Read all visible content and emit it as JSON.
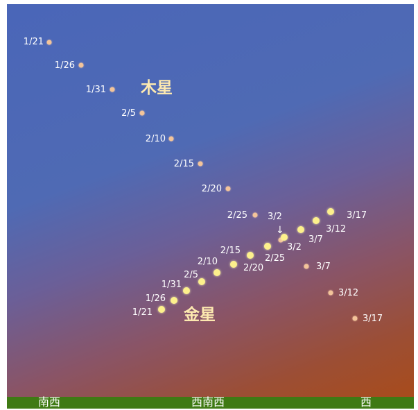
{
  "planets": {
    "jupiter": {
      "name": "木星",
      "positions": [
        {
          "date": "1/21"
        },
        {
          "date": "1/26"
        },
        {
          "date": "1/31"
        },
        {
          "date": "2/5"
        },
        {
          "date": "2/10"
        },
        {
          "date": "2/15"
        },
        {
          "date": "2/20"
        },
        {
          "date": "2/25"
        },
        {
          "date": "3/2"
        },
        {
          "date": "3/7"
        },
        {
          "date": "3/12"
        },
        {
          "date": "3/17"
        }
      ]
    },
    "venus": {
      "name": "金星",
      "positions": [
        {
          "date": "1/21"
        },
        {
          "date": "1/26"
        },
        {
          "date": "1/31"
        },
        {
          "date": "2/5"
        },
        {
          "date": "2/10"
        },
        {
          "date": "2/15"
        },
        {
          "date": "2/20"
        },
        {
          "date": "2/25"
        },
        {
          "date": "3/2"
        },
        {
          "date": "3/7"
        },
        {
          "date": "3/12"
        },
        {
          "date": "3/17"
        }
      ]
    }
  },
  "directions": [
    "南西",
    "西南西",
    "西"
  ],
  "conjunction_arrow": "↓",
  "colors": {
    "jupiter_dot": "#f3c49a",
    "venus_dot": "#fdf08c",
    "ground": "#3f7a14",
    "sky_top": "#4a66b8",
    "sky_bottom": "#a84c1c"
  }
}
